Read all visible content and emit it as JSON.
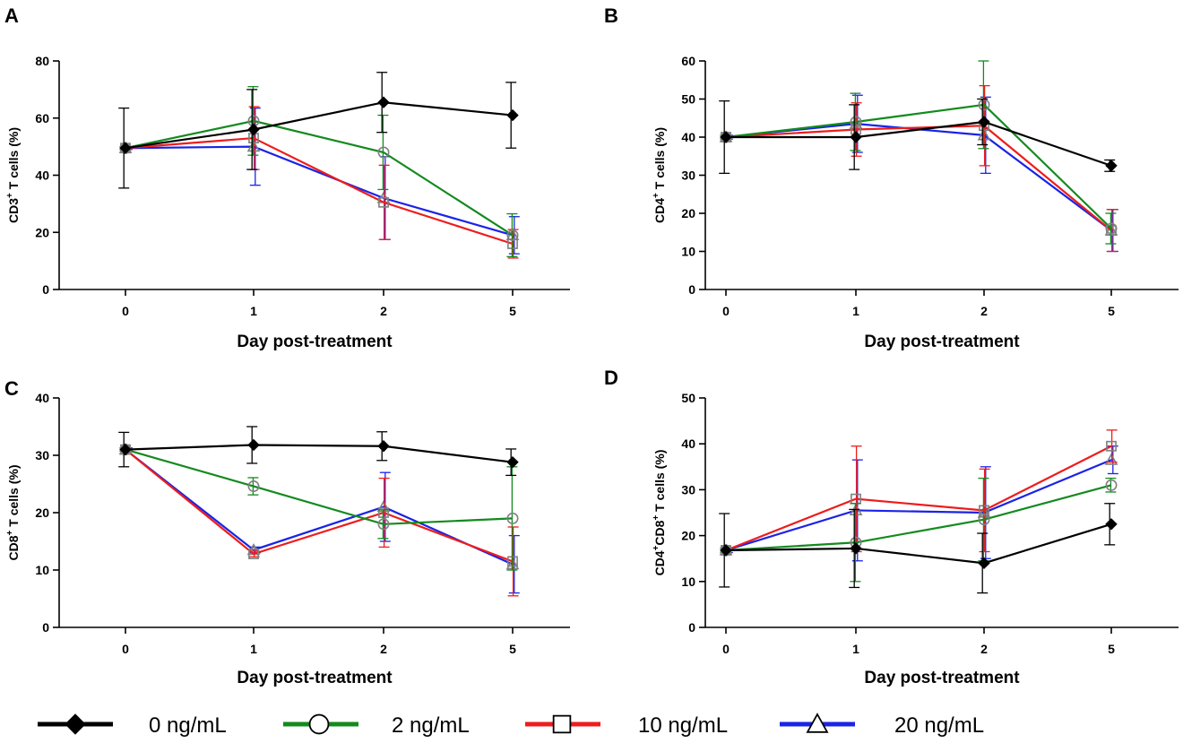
{
  "chart_data": [
    {
      "type": "line",
      "panel": "A",
      "title": "",
      "xlabel": "Day post-treatment",
      "ylabel": {
        "pre": "CD3",
        "sup1": "+",
        "mid": " T cells (%)",
        "sup2": "",
        "post": ""
      },
      "categories": [
        "0",
        "1",
        "2",
        "5"
      ],
      "ylim": [
        0,
        80
      ],
      "yticks": [
        "0",
        "20",
        "40",
        "60",
        "80"
      ],
      "series": [
        {
          "name": "0 ng/mL",
          "values": [
            49.5,
            56,
            65.5,
            61
          ],
          "err": [
            14,
            14,
            10.5,
            11.5
          ]
        },
        {
          "name": "2 ng/mL",
          "values": [
            49.5,
            59,
            48,
            19
          ],
          "err": [
            0.5,
            12,
            13,
            7.5
          ]
        },
        {
          "name": "10 ng/mL",
          "values": [
            49.5,
            53,
            30.5,
            16
          ],
          "err": [
            0.5,
            11,
            13,
            5
          ]
        },
        {
          "name": "20 ng/mL",
          "values": [
            49.5,
            50,
            32,
            19
          ],
          "err": [
            0.5,
            13.5,
            14.5,
            6.5
          ]
        }
      ]
    },
    {
      "type": "line",
      "panel": "B",
      "title": "",
      "xlabel": "Day post-treatment",
      "ylabel": {
        "pre": "CD4",
        "sup1": "+",
        "mid": " T cells (%)",
        "sup2": "",
        "post": ""
      },
      "categories": [
        "0",
        "1",
        "2",
        "5"
      ],
      "ylim": [
        0,
        60
      ],
      "yticks": [
        "0",
        "10",
        "20",
        "30",
        "40",
        "50",
        "60"
      ],
      "series": [
        {
          "name": "0 ng/mL",
          "values": [
            40,
            40,
            44,
            32.5
          ],
          "err": [
            9.5,
            8.5,
            6,
            1.5
          ]
        },
        {
          "name": "2 ng/mL",
          "values": [
            40,
            44,
            48.5,
            16
          ],
          "err": [
            0.5,
            7.5,
            11.5,
            4
          ]
        },
        {
          "name": "10 ng/mL",
          "values": [
            40,
            42,
            43,
            15.5
          ],
          "err": [
            0.5,
            7,
            10.5,
            5.5
          ]
        },
        {
          "name": "20 ng/mL",
          "values": [
            40,
            43.5,
            40.5,
            15.5
          ],
          "err": [
            0.5,
            7.5,
            10,
            5.5
          ]
        }
      ]
    },
    {
      "type": "line",
      "panel": "C",
      "title": "",
      "xlabel": "Day post-treatment",
      "ylabel": {
        "pre": "CD8",
        "sup1": "+",
        "mid": " T cells (%)",
        "sup2": "",
        "post": ""
      },
      "categories": [
        "0",
        "1",
        "2",
        "5"
      ],
      "ylim": [
        0,
        40
      ],
      "yticks": [
        "0",
        "10",
        "20",
        "30",
        "40"
      ],
      "series": [
        {
          "name": "0 ng/mL",
          "values": [
            31,
            31.8,
            31.6,
            28.8
          ],
          "err": [
            3,
            3.2,
            2.5,
            2.3
          ]
        },
        {
          "name": "2 ng/mL",
          "values": [
            31,
            24.6,
            18,
            19
          ],
          "err": [
            0.3,
            1.5,
            2.5,
            9
          ]
        },
        {
          "name": "10 ng/mL",
          "values": [
            31,
            12.8,
            20,
            11.5
          ],
          "err": [
            0.3,
            0.5,
            6,
            6
          ]
        },
        {
          "name": "20 ng/mL",
          "values": [
            31,
            13.5,
            21,
            11
          ],
          "err": [
            0.3,
            0.5,
            6,
            5
          ]
        }
      ]
    },
    {
      "type": "line",
      "panel": "D",
      "title": "",
      "xlabel": "Day post-treatment",
      "ylabel": {
        "pre": "CD4",
        "sup1": "+",
        "mid": "CD8",
        "sup2": "+",
        "post": " T cells (%)"
      },
      "categories": [
        "0",
        "1",
        "2",
        "5"
      ],
      "ylim": [
        0,
        50
      ],
      "yticks": [
        "0",
        "10",
        "20",
        "30",
        "40",
        "50"
      ],
      "series": [
        {
          "name": "0 ng/mL",
          "values": [
            16.8,
            17.2,
            14,
            22.5
          ],
          "err": [
            8,
            8.5,
            6.5,
            4.5
          ]
        },
        {
          "name": "2 ng/mL",
          "values": [
            16.8,
            18.5,
            23.5,
            31
          ],
          "err": [
            0.5,
            8.5,
            9,
            1.5
          ]
        },
        {
          "name": "10 ng/mL",
          "values": [
            16.8,
            28,
            25.5,
            39.5
          ],
          "err": [
            0.5,
            11.5,
            9,
            3.5
          ]
        },
        {
          "name": "20 ng/mL",
          "values": [
            16.8,
            25.5,
            25,
            36.5
          ],
          "err": [
            0.5,
            11,
            10,
            3
          ]
        }
      ]
    }
  ],
  "legend": [
    {
      "label": "0 ng/mL",
      "color": "#000000",
      "marker": "diamond-filled"
    },
    {
      "label": "2 ng/mL",
      "color": "#138a1e",
      "marker": "circle-open"
    },
    {
      "label": "10 ng/mL",
      "color": "#ee1c1c",
      "marker": "square-open"
    },
    {
      "label": "20 ng/mL",
      "color": "#1a23e6",
      "marker": "triangle-open"
    }
  ],
  "colors": {
    "series": [
      "#000000",
      "#138a1e",
      "#ee1c1c",
      "#1a23e6"
    ],
    "axis": "#000000",
    "marker_outline": "#808080"
  }
}
